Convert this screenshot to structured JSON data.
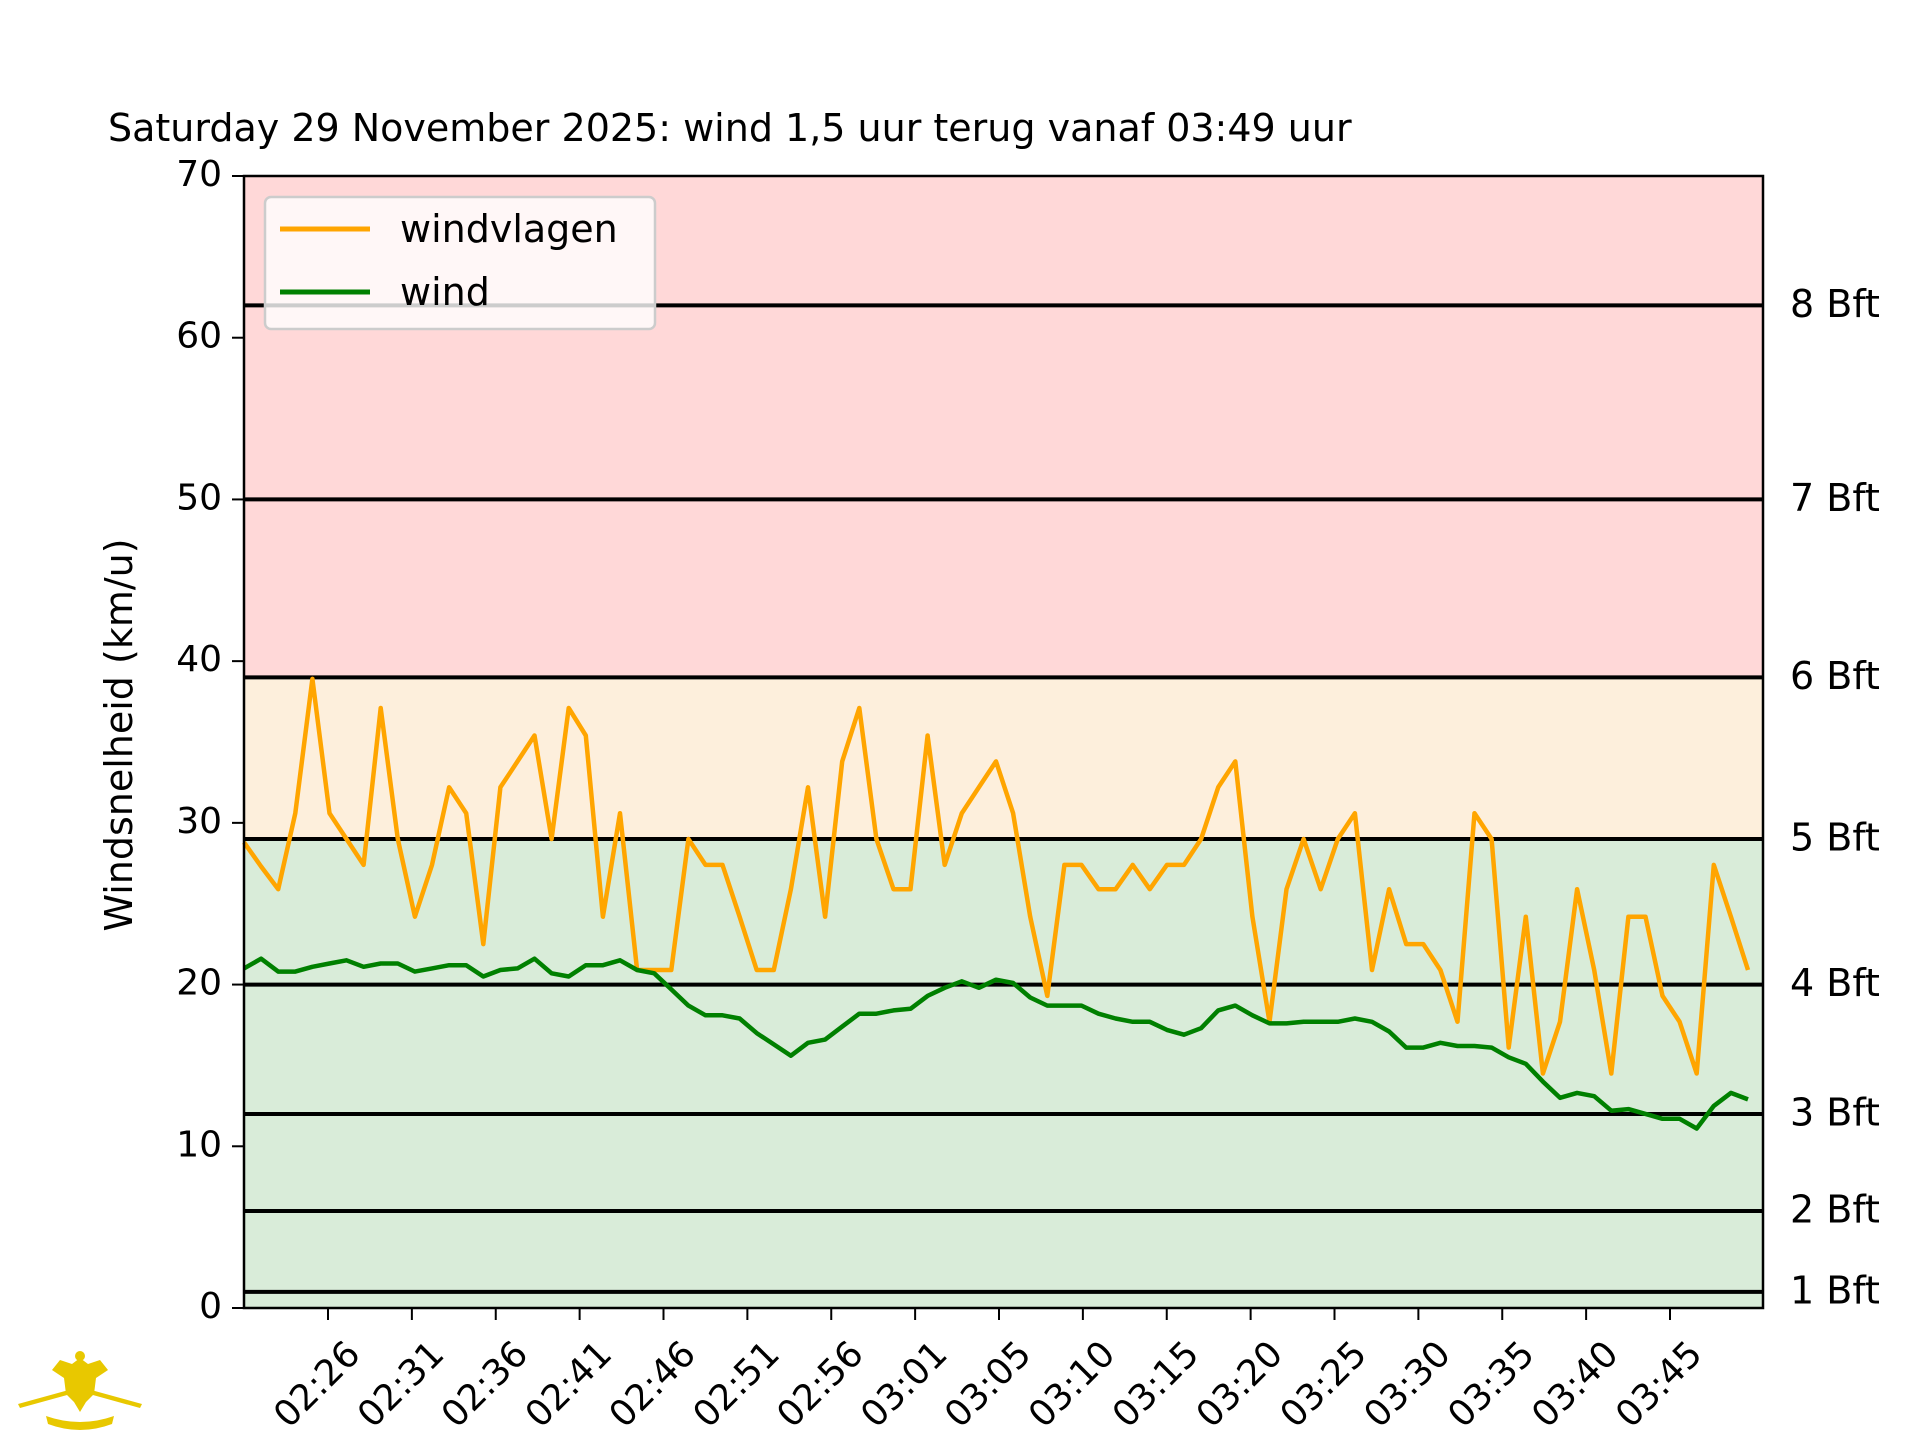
{
  "chart_data": {
    "type": "line",
    "title": "Saturday 29 November 2025: wind 1,5 uur terug vanaf 03:49 uur",
    "xlabel": "",
    "ylabel": "Windsnelheid (km/u)",
    "ylim": [
      0,
      70
    ],
    "yticks": [
      "0",
      "10",
      "20",
      "30",
      "40",
      "50",
      "60",
      "70"
    ],
    "xticks": [
      "02:26",
      "02:31",
      "02:36",
      "02:41",
      "02:46",
      "02:51",
      "02:56",
      "03:01",
      "03:05",
      "03:10",
      "03:15",
      "03:20",
      "03:25",
      "03:30",
      "03:35",
      "03:40",
      "03:45"
    ],
    "legend_position": "top-left",
    "grid": false,
    "bands": [
      {
        "from": 0,
        "to": 29,
        "color": "#d9ecd9"
      },
      {
        "from": 29,
        "to": 39,
        "color": "#fdefdc"
      },
      {
        "from": 39,
        "to": 70,
        "color": "#ffd8d8"
      }
    ],
    "beaufort_lines": [
      {
        "value": 1,
        "label": "1 Bft"
      },
      {
        "value": 6,
        "label": "2 Bft"
      },
      {
        "value": 12,
        "label": "3 Bft"
      },
      {
        "value": 20,
        "label": "4 Bft"
      },
      {
        "value": 29,
        "label": "5 Bft"
      },
      {
        "value": 39,
        "label": "6 Bft"
      },
      {
        "value": 50,
        "label": "7 Bft"
      },
      {
        "value": 62,
        "label": "8 Bft"
      }
    ],
    "series": [
      {
        "name": "windvlagen",
        "color": "#ffa500",
        "values": [
          28.8,
          27.3,
          25.9,
          30.6,
          38.9,
          30.6,
          29.0,
          27.4,
          37.1,
          29.0,
          24.2,
          27.4,
          32.2,
          30.6,
          22.5,
          32.2,
          33.8,
          35.4,
          29.0,
          37.1,
          35.4,
          24.2,
          30.6,
          20.9,
          20.9,
          20.9,
          29.0,
          27.4,
          27.4,
          24.2,
          20.9,
          20.9,
          25.9,
          32.2,
          24.2,
          33.8,
          37.1,
          29.0,
          25.9,
          25.9,
          35.4,
          27.4,
          30.6,
          32.2,
          33.8,
          30.6,
          24.2,
          19.3,
          27.4,
          27.4,
          25.9,
          25.9,
          27.4,
          25.9,
          27.4,
          27.4,
          29.0,
          32.2,
          33.8,
          24.2,
          17.7,
          25.9,
          29.0,
          25.9,
          29.0,
          30.6,
          20.9,
          25.9,
          22.5,
          22.5,
          20.9,
          17.7,
          30.6,
          29.0,
          16.1,
          24.2,
          14.5,
          17.7,
          25.9,
          20.9,
          14.5,
          24.2,
          24.2,
          19.3,
          17.7,
          14.5,
          27.4,
          24.2,
          20.9
        ]
      },
      {
        "name": "wind",
        "color": "#008000",
        "values": [
          21.0,
          21.6,
          20.8,
          20.8,
          21.1,
          21.3,
          21.5,
          21.1,
          21.3,
          21.3,
          20.8,
          21.0,
          21.2,
          21.2,
          20.5,
          20.9,
          21.0,
          21.6,
          20.7,
          20.5,
          21.2,
          21.2,
          21.5,
          20.9,
          20.7,
          19.7,
          18.7,
          18.1,
          18.1,
          17.9,
          17.0,
          16.3,
          15.6,
          16.4,
          16.6,
          17.4,
          18.2,
          18.2,
          18.4,
          18.5,
          19.3,
          19.8,
          20.2,
          19.8,
          20.3,
          20.1,
          19.2,
          18.7,
          18.7,
          18.7,
          18.2,
          17.9,
          17.7,
          17.7,
          17.2,
          16.9,
          17.3,
          18.4,
          18.7,
          18.1,
          17.6,
          17.6,
          17.7,
          17.7,
          17.7,
          17.9,
          17.7,
          17.1,
          16.1,
          16.1,
          16.4,
          16.2,
          16.2,
          16.1,
          15.5,
          15.1,
          14.0,
          13.0,
          13.3,
          13.1,
          12.2,
          12.3,
          12.0,
          11.7,
          11.7,
          11.1,
          12.5,
          13.3,
          12.9
        ]
      }
    ]
  }
}
